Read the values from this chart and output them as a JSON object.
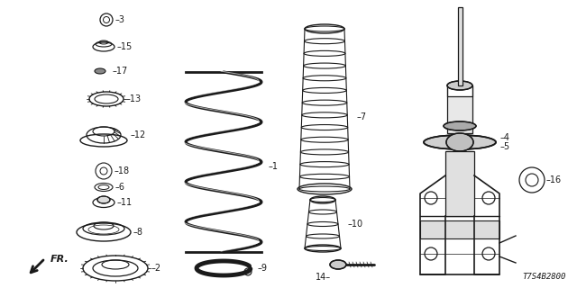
{
  "bg_color": "#ffffff",
  "line_color": "#1a1a1a",
  "diagram_code": "T7S4B2800",
  "fig_w": 6.4,
  "fig_h": 3.2,
  "dpi": 100
}
